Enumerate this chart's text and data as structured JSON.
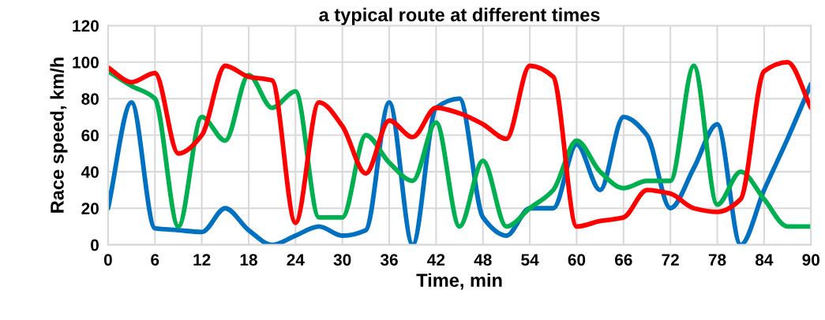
{
  "chart_data": {
    "type": "line",
    "title": "a typical route at different times",
    "xlabel": "Time, min",
    "ylabel": "Race speed, km/h",
    "x": [
      0,
      3,
      6,
      9,
      12,
      15,
      18,
      21,
      24,
      27,
      30,
      33,
      36,
      39,
      42,
      45,
      48,
      51,
      54,
      57,
      60,
      63,
      66,
      69,
      72,
      75,
      78,
      81,
      84,
      87,
      90
    ],
    "series": [
      {
        "color": "#0070c0",
        "values": [
          20,
          78,
          9,
          8,
          7,
          20,
          8,
          0,
          5,
          10,
          5,
          8,
          78,
          0,
          75,
          80,
          15,
          5,
          20,
          20,
          55,
          30,
          70,
          60,
          20,
          42,
          66,
          0,
          30,
          58,
          88
        ]
      },
      {
        "color": "#00b050",
        "values": [
          95,
          87,
          80,
          10,
          70,
          57,
          93,
          75,
          84,
          15,
          15,
          60,
          45,
          35,
          67,
          10,
          46,
          10,
          20,
          30,
          57,
          40,
          31,
          35,
          35,
          98,
          22,
          40,
          25,
          10,
          10
        ]
      },
      {
        "color": "#ff0000",
        "values": [
          97,
          89,
          94,
          50,
          60,
          98,
          92,
          90,
          12,
          78,
          65,
          39,
          68,
          59,
          75,
          72,
          66,
          58,
          98,
          92,
          10,
          13,
          15,
          30,
          28,
          20,
          18,
          25,
          95,
          100,
          75
        ]
      }
    ],
    "xlim": [
      0,
      90
    ],
    "xticks": [
      0,
      6,
      12,
      18,
      24,
      30,
      36,
      42,
      48,
      54,
      60,
      66,
      72,
      78,
      84,
      90
    ],
    "ylim": [
      0,
      120
    ],
    "yticks": [
      0,
      20,
      40,
      60,
      80,
      100,
      120
    ],
    "grid": true,
    "legend": false,
    "marker": "none",
    "line_style": "solid"
  }
}
